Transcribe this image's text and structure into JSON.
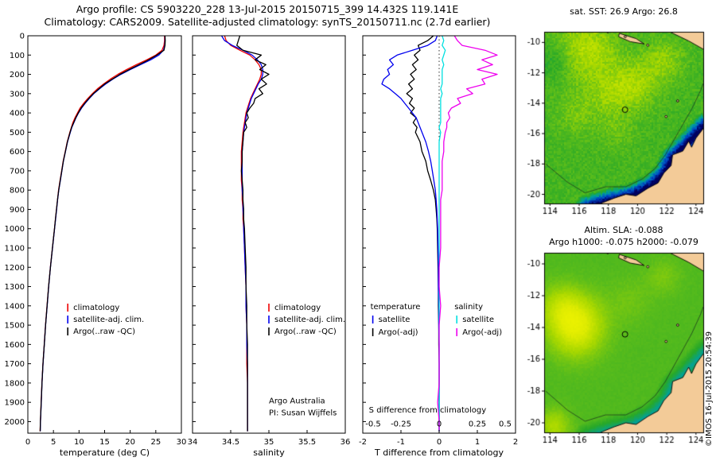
{
  "header": {
    "line1": "Argo profile: CS 5903220_228 13-Jul-2015 20150715_399 14.432S 119.141E",
    "line2": "Climatology: CARS2009. Satellite-adjusted climatology: synTS_20150711.nc (2.7d earlier)"
  },
  "watermark": "©IMOS 16-Jul-2015 20:54:39",
  "colors": {
    "land": "#f3cb98",
    "frame": "#000000",
    "scale": [
      "#000060",
      "#0048c8",
      "#00a0a0",
      "#28a828",
      "#58bc1c",
      "#a8d800",
      "#e0ec00",
      "#f8f800"
    ]
  },
  "depth_levels": [
    0,
    25,
    50,
    75,
    100,
    125,
    150,
    175,
    200,
    225,
    250,
    275,
    300,
    325,
    350,
    375,
    400,
    425,
    450,
    475,
    500,
    550,
    600,
    650,
    700,
    750,
    800,
    850,
    900,
    950,
    1000,
    1100,
    1200,
    1300,
    1400,
    1500,
    1600,
    1700,
    1800,
    1900,
    2000,
    2050
  ],
  "depth_ticks": [
    0,
    100,
    200,
    300,
    400,
    500,
    600,
    700,
    800,
    900,
    1000,
    1100,
    1200,
    1300,
    1400,
    1500,
    1600,
    1700,
    1800,
    1900,
    2000
  ],
  "chart_data": [
    {
      "id": "temperature-profile",
      "type": "line",
      "xlabel": "temperature (deg C)",
      "xlim": [
        0,
        30
      ],
      "xticks": [
        0,
        5,
        10,
        15,
        20,
        25,
        30
      ],
      "ylim": [
        0,
        2060
      ],
      "show_y_labels": true,
      "legend": {
        "fx": 0.26,
        "fy": 0.69
      },
      "series": [
        {
          "name": "climatology",
          "color": "#ee0000",
          "values": [
            26.7,
            26.7,
            26.6,
            26.2,
            25.0,
            23.2,
            21.2,
            19.3,
            17.6,
            16.1,
            14.8,
            13.6,
            12.6,
            11.7,
            10.9,
            10.2,
            9.7,
            9.2,
            8.8,
            8.5,
            8.2,
            7.7,
            7.3,
            6.9,
            6.6,
            6.3,
            6.0,
            5.8,
            5.6,
            5.4,
            5.2,
            4.8,
            4.4,
            4.05,
            3.75,
            3.45,
            3.2,
            2.95,
            2.75,
            2.6,
            2.45,
            2.4
          ]
        },
        {
          "name": "satellite-adj. clim.",
          "color": "#0000ee",
          "values": [
            26.8,
            26.8,
            26.75,
            26.5,
            25.6,
            24.0,
            22.0,
            20.0,
            18.2,
            16.6,
            15.2,
            14.0,
            12.9,
            12.0,
            11.2,
            10.5,
            9.9,
            9.4,
            9.0,
            8.6,
            8.3,
            7.75,
            7.35,
            6.95,
            6.65,
            6.35,
            6.05,
            5.82,
            5.62,
            5.42,
            5.22,
            4.82,
            4.42,
            4.07,
            3.77,
            3.47,
            3.22,
            2.97,
            2.77,
            2.62,
            2.47,
            2.42
          ]
        },
        {
          "name": "Argo(..raw -QC)",
          "color": "#000000",
          "values": [
            26.8,
            26.85,
            26.8,
            26.6,
            25.2,
            23.6,
            21.7,
            19.8,
            18.0,
            16.5,
            15.0,
            13.9,
            12.8,
            11.9,
            11.1,
            10.4,
            9.85,
            9.35,
            8.95,
            8.55,
            8.25,
            7.72,
            7.33,
            6.93,
            6.63,
            6.33,
            6.03,
            5.8,
            5.6,
            5.4,
            5.2,
            4.8,
            4.41,
            4.06,
            3.76,
            3.46,
            3.21,
            2.96,
            2.76,
            2.61,
            2.46,
            2.41
          ]
        }
      ]
    },
    {
      "id": "salinity-profile",
      "type": "line",
      "xlabel": "salinity",
      "xlim": [
        34,
        36
      ],
      "xticks": [
        34,
        34.5,
        35,
        35.5,
        36
      ],
      "ylim": [
        0,
        2060
      ],
      "show_y_labels": false,
      "legend": {
        "fx": 0.5,
        "fy": 0.69
      },
      "annotations": [
        {
          "text": "Argo Australia",
          "fx": 0.5,
          "fy": 0.925,
          "anchor": "start"
        },
        {
          "text": "PI: Susan Wijffels",
          "fx": 0.5,
          "fy": 0.955,
          "anchor": "start"
        }
      ],
      "series": [
        {
          "name": "climatology",
          "color": "#ee0000",
          "values": [
            34.42,
            34.44,
            34.5,
            34.62,
            34.75,
            34.82,
            34.87,
            34.9,
            34.9,
            34.88,
            34.85,
            34.82,
            34.79,
            34.76,
            34.74,
            34.72,
            34.7,
            34.69,
            34.68,
            34.67,
            34.66,
            34.65,
            34.64,
            34.64,
            34.64,
            34.64,
            34.65,
            34.65,
            34.66,
            34.66,
            34.67,
            34.68,
            34.69,
            34.7,
            34.7,
            34.71,
            34.71,
            34.71,
            34.72,
            34.72,
            34.72,
            34.72
          ]
        },
        {
          "name": "satellite-adj. clim.",
          "color": "#0000ee",
          "values": [
            34.38,
            34.42,
            34.52,
            34.66,
            34.78,
            34.85,
            34.9,
            34.92,
            34.92,
            34.9,
            34.86,
            34.83,
            34.8,
            34.77,
            34.75,
            34.73,
            34.71,
            34.7,
            34.69,
            34.68,
            34.67,
            34.66,
            34.65,
            34.65,
            34.65,
            34.65,
            34.65,
            34.66,
            34.66,
            34.67,
            34.67,
            34.68,
            34.69,
            34.7,
            34.7,
            34.71,
            34.71,
            34.72,
            34.72,
            34.72,
            34.72,
            34.72
          ]
        },
        {
          "name": "Argo(..raw -QC)",
          "color": "#000000",
          "values": [
            34.62,
            34.6,
            34.58,
            34.66,
            34.9,
            34.82,
            34.96,
            34.88,
            35.0,
            34.9,
            34.97,
            34.87,
            34.92,
            34.82,
            34.8,
            34.75,
            34.71,
            34.73,
            34.69,
            34.71,
            34.67,
            34.66,
            34.65,
            34.65,
            34.64,
            34.65,
            34.66,
            34.66,
            34.67,
            34.67,
            34.68,
            34.69,
            34.7,
            34.7,
            34.71,
            34.71,
            34.72,
            34.72,
            34.72,
            34.72,
            34.72,
            34.72
          ]
        }
      ]
    },
    {
      "id": "difference-from-climatology",
      "type": "line",
      "xlabel": "T difference from climatology",
      "xlim": [
        -2,
        2
      ],
      "xticks": [
        -2,
        -1,
        0,
        1,
        2
      ],
      "ylim": [
        0,
        2060
      ],
      "show_y_labels": false,
      "zeroline": true,
      "s_axis": {
        "label": "S difference from climatology",
        "ticks": [
          -0.5,
          -0.25,
          0,
          0.25,
          0.5
        ],
        "scale_to_T_axis": 4
      },
      "legend_groups": [
        {
          "header": "temperature",
          "items": [
            {
              "label": "satellite",
              "color": "#0000ee"
            },
            {
              "label": "Argo(-adj)",
              "color": "#000000"
            }
          ]
        },
        {
          "header": "salinity",
          "items": [
            {
              "label": "satellite",
              "color": "#00e0e0"
            },
            {
              "label": "Argo(-adj)",
              "color": "#ee00ee"
            }
          ]
        }
      ],
      "series": [
        {
          "name": "T Argo(-adj)",
          "color": "#000000",
          "x_scale": 1,
          "values": [
            -0.15,
            -0.3,
            -0.55,
            -0.5,
            -0.65,
            -0.55,
            -0.7,
            -0.6,
            -0.75,
            -0.65,
            -0.8,
            -0.7,
            -0.85,
            -0.7,
            -0.78,
            -0.65,
            -0.75,
            -0.6,
            -0.68,
            -0.58,
            -0.62,
            -0.5,
            -0.45,
            -0.35,
            -0.3,
            -0.22,
            -0.15,
            -0.1,
            -0.08,
            -0.06,
            -0.05,
            -0.04,
            -0.03,
            -0.02,
            -0.02,
            -0.01,
            -0.01,
            0,
            0,
            0,
            0,
            0
          ]
        },
        {
          "name": "T satellite",
          "color": "#0000ee",
          "x_scale": 1,
          "values": [
            -0.05,
            -0.1,
            -0.3,
            -0.7,
            -1.1,
            -1.3,
            -1.2,
            -1.35,
            -1.3,
            -1.45,
            -1.5,
            -1.3,
            -1.15,
            -1.0,
            -0.9,
            -0.8,
            -0.7,
            -0.6,
            -0.55,
            -0.5,
            -0.45,
            -0.35,
            -0.28,
            -0.22,
            -0.18,
            -0.14,
            -0.1,
            -0.08,
            -0.06,
            -0.05,
            -0.04,
            -0.03,
            -0.02,
            -0.02,
            -0.01,
            -0.01,
            0,
            0,
            0,
            0,
            0,
            0
          ]
        },
        {
          "name": "S satellite",
          "color": "#00e0e0",
          "x_scale": 4,
          "values": [
            0.02,
            0.03,
            0.02,
            0.04,
            0.03,
            0.02,
            0.03,
            0.02,
            0.02,
            0.02,
            0.02,
            0.01,
            0.02,
            0.01,
            0.01,
            0.01,
            0.01,
            0.01,
            0.01,
            0,
            0.01,
            0,
            0,
            0,
            0,
            0,
            0,
            0,
            0,
            0,
            0,
            0,
            0,
            0,
            0,
            0,
            0,
            0,
            0,
            0,
            0,
            0
          ]
        },
        {
          "name": "S Argo(-adj)",
          "color": "#ee00ee",
          "x_scale": 4,
          "values": [
            0.1,
            0.12,
            0.15,
            0.3,
            0.38,
            0.28,
            0.35,
            0.25,
            0.38,
            0.28,
            0.3,
            0.18,
            0.22,
            0.12,
            0.14,
            0.08,
            0.06,
            0.07,
            0.05,
            0.05,
            0.04,
            0.03,
            0.03,
            0.02,
            0.02,
            0.02,
            0.02,
            0.01,
            0.01,
            0.01,
            0.01,
            0.01,
            0,
            0,
            0.01,
            0,
            0,
            0,
            0,
            -0.01,
            0,
            0
          ]
        }
      ]
    },
    {
      "id": "sst-map",
      "type": "heatmap",
      "title": "sat. SST: 26.9 Argo: 26.8",
      "xlim": [
        113.6,
        124.5
      ],
      "ylim": [
        -20.6,
        -9.3
      ],
      "xticks": [
        114,
        116,
        118,
        120,
        122,
        124
      ],
      "yticks": [
        -10,
        -12,
        -14,
        -16,
        -18,
        -20
      ],
      "marker": {
        "lon": 119.14,
        "lat": -14.43
      },
      "field": {
        "base": 0.52,
        "speckle": 0.06,
        "coast_band": 0.6,
        "blobs": [
          [
            116.5,
            -10.5,
            0.22,
            2.2
          ],
          [
            119.8,
            -12.8,
            0.18,
            1.6
          ],
          [
            121.8,
            -11.2,
            0.15,
            1.4
          ],
          [
            115.8,
            -14.8,
            0.1,
            1.4
          ],
          [
            118.6,
            -15.8,
            0.08,
            1.2
          ],
          [
            114.3,
            -11.2,
            -0.12,
            1.2
          ],
          [
            118.0,
            -13.5,
            0.12,
            1.5
          ]
        ]
      }
    },
    {
      "id": "sla-map",
      "type": "heatmap",
      "title": "Altim. SLA: -0.088",
      "title2": "Argo h1000: -0.075 h2000: -0.079",
      "xlim": [
        113.6,
        124.5
      ],
      "ylim": [
        -20.6,
        -9.3
      ],
      "xticks": [
        114,
        116,
        118,
        120,
        122,
        124
      ],
      "yticks": [
        -10,
        -12,
        -14,
        -16,
        -18,
        -20
      ],
      "marker": {
        "lon": 119.14,
        "lat": -14.43
      },
      "field": {
        "base": 0.55,
        "speckle": 0.015,
        "coast_band": 0.25,
        "blobs": [
          [
            115.8,
            -13.9,
            0.33,
            1.9
          ],
          [
            114.6,
            -12.6,
            0.12,
            1.4
          ],
          [
            121.8,
            -10.8,
            0.08,
            1.2
          ],
          [
            114.3,
            -20.2,
            0.18,
            1.1
          ],
          [
            119.5,
            -12.3,
            0.06,
            1.5
          ]
        ]
      }
    }
  ],
  "geo": {
    "australia": [
      [
        116.7,
        -20.95
      ],
      [
        117.6,
        -20.55
      ],
      [
        118.4,
        -20.25
      ],
      [
        119.2,
        -20.0
      ],
      [
        119.9,
        -20.1
      ],
      [
        120.7,
        -19.6
      ],
      [
        121.4,
        -19.25
      ],
      [
        121.8,
        -18.6
      ],
      [
        122.3,
        -18.1
      ],
      [
        122.4,
        -17.4
      ],
      [
        123.1,
        -17.15
      ],
      [
        123.5,
        -16.5
      ],
      [
        123.7,
        -16.9
      ],
      [
        124.0,
        -16.3
      ],
      [
        124.55,
        -15.6
      ],
      [
        124.55,
        -21.0
      ],
      [
        116.7,
        -21.0
      ]
    ],
    "islands": [
      [
        [
          120.9,
          -8.9
        ],
        [
          122.2,
          -9.3
        ],
        [
          123.5,
          -9.9
        ],
        [
          124.6,
          -10.5
        ],
        [
          124.6,
          -8.9
        ]
      ],
      [
        [
          118.75,
          -9.4
        ],
        [
          119.9,
          -9.75
        ],
        [
          120.45,
          -10.1
        ],
        [
          119.5,
          -9.95
        ],
        [
          118.7,
          -9.62
        ]
      ]
    ],
    "islets": [
      [
        119.15,
        -9.62
      ],
      [
        120.7,
        -10.18
      ],
      [
        122.75,
        -13.85
      ],
      [
        121.95,
        -14.88
      ],
      [
        117.95,
        -9.3
      ]
    ],
    "coast_band": [
      [
        116.5,
        -20.9
      ],
      [
        118.2,
        -20.4
      ],
      [
        119.6,
        -20.1
      ],
      [
        120.9,
        -19.5
      ],
      [
        121.9,
        -18.6
      ],
      [
        122.4,
        -17.6
      ],
      [
        123.2,
        -16.9
      ],
      [
        124.1,
        -16.0
      ],
      [
        124.55,
        -15.5
      ]
    ],
    "contour": [
      [
        113.7,
        -18.0
      ],
      [
        115.2,
        -19.2
      ],
      [
        116.4,
        -19.9
      ],
      [
        117.8,
        -19.5
      ],
      [
        119.2,
        -19.5
      ],
      [
        120.3,
        -19.0
      ],
      [
        121.2,
        -18.3
      ],
      [
        121.9,
        -17.4
      ],
      [
        122.5,
        -16.4
      ],
      [
        123.1,
        -15.4
      ],
      [
        123.7,
        -14.4
      ],
      [
        124.3,
        -13.2
      ],
      [
        124.5,
        -12.7
      ]
    ]
  }
}
